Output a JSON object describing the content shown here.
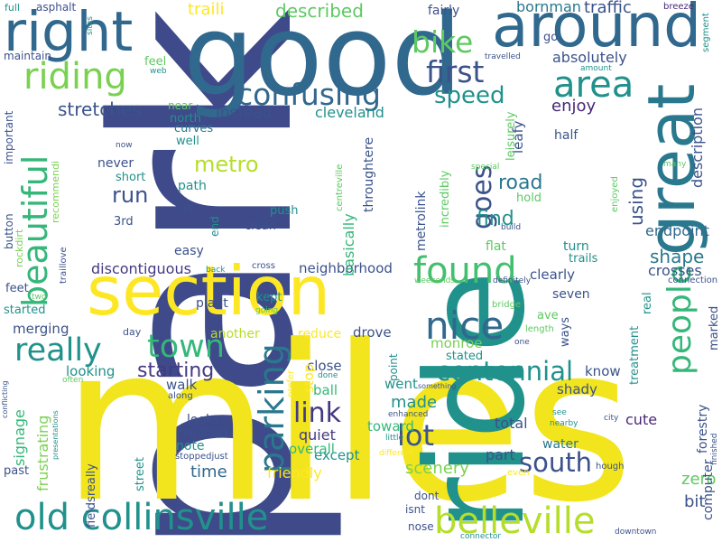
{
  "colors": {
    "background": "#ffffff",
    "palette": [
      "#440154",
      "#3b528b",
      "#21918c",
      "#5ec962",
      "#fde725"
    ]
  },
  "words": [
    {
      "text": "park",
      "color": "#3e4a89"
    },
    {
      "text": "miles",
      "color": "#f2e51d"
    },
    {
      "text": "ride",
      "color": "#21918c"
    },
    {
      "text": "good",
      "color": "#31688e"
    },
    {
      "text": "section",
      "color": "#fde725"
    },
    {
      "text": "around",
      "color": "#31688e"
    },
    {
      "text": "right",
      "color": "#31688e"
    },
    {
      "text": "great",
      "color": "#2a788e"
    },
    {
      "text": "old collinsville",
      "color": "#21918c"
    },
    {
      "text": "belleville",
      "color": "#b5de2b"
    },
    {
      "text": "parking",
      "color": "#2a788e"
    },
    {
      "text": "found",
      "color": "#44bf70"
    },
    {
      "text": "nice",
      "color": "#31688e"
    },
    {
      "text": "confusing",
      "color": "#31688e"
    },
    {
      "text": "area",
      "color": "#21918c"
    },
    {
      "text": "riding",
      "color": "#7ad151"
    },
    {
      "text": "beautiful",
      "color": "#35b779"
    },
    {
      "text": "bike",
      "color": "#5ec962"
    },
    {
      "text": "first",
      "color": "#3b528b"
    },
    {
      "text": "really",
      "color": "#21918c"
    },
    {
      "text": "town",
      "color": "#35b779"
    },
    {
      "text": "people",
      "color": "#35b779"
    },
    {
      "text": "link",
      "color": "#443983"
    },
    {
      "text": "lot",
      "color": "#3b528b"
    },
    {
      "text": "south",
      "color": "#3b528b"
    },
    {
      "text": "centennial",
      "color": "#21918c"
    },
    {
      "text": "goes",
      "color": "#3b528b"
    },
    {
      "text": "speed",
      "color": "#21918c"
    },
    {
      "text": "metro",
      "color": "#b5de2b"
    },
    {
      "text": "run",
      "color": "#3b528b"
    },
    {
      "text": "starting",
      "color": "#443983"
    },
    {
      "text": "shape",
      "color": "#2a788e"
    },
    {
      "text": "using",
      "color": "#3b528b"
    },
    {
      "text": "road",
      "color": "#2a788e"
    },
    {
      "text": "find",
      "color": "#21918c"
    },
    {
      "text": "stretches",
      "color": "#3b528b"
    },
    {
      "text": "instead",
      "color": "#3b528b"
    },
    {
      "text": "cleveland",
      "color": "#21918c"
    },
    {
      "text": "described",
      "color": "#5ec962"
    },
    {
      "text": "traili",
      "color": "#fde725"
    },
    {
      "text": "traffic",
      "color": "#3b528b"
    },
    {
      "text": "bornman",
      "color": "#2a788e"
    },
    {
      "text": "enjoy",
      "color": "#482878"
    },
    {
      "text": "absolutely",
      "color": "#3b528b"
    },
    {
      "text": "description",
      "color": "#3b528b"
    },
    {
      "text": "endpoint",
      "color": "#31688e"
    },
    {
      "text": "crosses",
      "color": "#3b528b"
    },
    {
      "text": "discontiguous",
      "color": "#443983"
    },
    {
      "text": "neighborhood",
      "color": "#3b528b"
    },
    {
      "text": "made",
      "color": "#21918c"
    },
    {
      "text": "signage",
      "color": "#35b779"
    },
    {
      "text": "frustrating",
      "color": "#7ad151"
    },
    {
      "text": "time",
      "color": "#31688e"
    },
    {
      "text": "zero",
      "color": "#5ec962"
    },
    {
      "text": "bit",
      "color": "#3b528b"
    },
    {
      "text": "scenery",
      "color": "#7ad151"
    },
    {
      "text": "quiet",
      "color": "#443983"
    },
    {
      "text": "except",
      "color": "#21918c"
    },
    {
      "text": "overall",
      "color": "#35b779"
    },
    {
      "text": "friendly",
      "color": "#fde725"
    },
    {
      "text": "part",
      "color": "#3b528b"
    },
    {
      "text": "total",
      "color": "#3b528b"
    },
    {
      "text": "water",
      "color": "#2a788e"
    },
    {
      "text": "cute",
      "color": "#482878"
    },
    {
      "text": "know",
      "color": "#3b528b"
    },
    {
      "text": "shady",
      "color": "#3b528b"
    },
    {
      "text": "went",
      "color": "#21918c"
    },
    {
      "text": "toward",
      "color": "#35b779"
    },
    {
      "text": "close",
      "color": "#3b528b"
    },
    {
      "text": "ball",
      "color": "#35b779"
    },
    {
      "text": "stop",
      "color": "#fde725"
    },
    {
      "text": "looks",
      "color": "#3b528b"
    },
    {
      "text": "crushed",
      "color": "#3b528b"
    },
    {
      "text": "note",
      "color": "#21918c"
    },
    {
      "text": "walk",
      "color": "#3b528b"
    },
    {
      "text": "looking",
      "color": "#21918c"
    },
    {
      "text": "merging",
      "color": "#3b528b"
    },
    {
      "text": "monroe",
      "color": "#7ad151"
    },
    {
      "text": "stated",
      "color": "#21918c"
    },
    {
      "text": "drove",
      "color": "#3b528b"
    },
    {
      "text": "reduce",
      "color": "#fde725"
    },
    {
      "text": "another",
      "color": "#b5de2b"
    },
    {
      "text": "plant",
      "color": "#3b528b"
    },
    {
      "text": "kept",
      "color": "#21918c"
    },
    {
      "text": "seven",
      "color": "#3b528b"
    },
    {
      "text": "clearly",
      "color": "#3b528b"
    },
    {
      "text": "turn",
      "color": "#21918c"
    },
    {
      "text": "trails",
      "color": "#21918c"
    },
    {
      "text": "flat",
      "color": "#5ec962"
    },
    {
      "text": "clean",
      "color": "#3b528b"
    },
    {
      "text": "push",
      "color": "#21918c"
    },
    {
      "text": "ill",
      "color": "#3b528b"
    },
    {
      "text": "easy",
      "color": "#3b528b"
    },
    {
      "text": "path",
      "color": "#21918c"
    },
    {
      "text": "short",
      "color": "#21918c"
    },
    {
      "text": "never",
      "color": "#3b528b"
    },
    {
      "text": "3rd",
      "color": "#3b528b"
    },
    {
      "text": "well",
      "color": "#21918c"
    },
    {
      "text": "curves",
      "color": "#2a788e"
    },
    {
      "text": "north",
      "color": "#21918c"
    },
    {
      "text": "near",
      "color": "#5ec962"
    },
    {
      "text": "feel",
      "color": "#5ec962"
    },
    {
      "text": "half",
      "color": "#3b528b"
    },
    {
      "text": "leafy",
      "color": "#3b528b"
    },
    {
      "text": "leisurely",
      "color": "#5ec962"
    },
    {
      "text": "fairly",
      "color": "#3b528b"
    },
    {
      "text": "go",
      "color": "#3b528b"
    },
    {
      "text": "travelled",
      "color": "#3b528b"
    },
    {
      "text": "amount",
      "color": "#21918c"
    },
    {
      "text": "breeze",
      "color": "#482878"
    },
    {
      "text": "segment",
      "color": "#21918c"
    },
    {
      "text": "sites",
      "color": "#21918c"
    },
    {
      "text": "full",
      "color": "#21918c"
    },
    {
      "text": "asphalt",
      "color": "#3b528b"
    },
    {
      "text": "maintain",
      "color": "#3b528b"
    },
    {
      "text": "important",
      "color": "#3b528b"
    },
    {
      "text": "button",
      "color": "#3b528b"
    },
    {
      "text": "rockdirt",
      "color": "#7ad151"
    },
    {
      "text": "recommendi",
      "color": "#7ad151"
    },
    {
      "text": "traillove",
      "color": "#3b528b"
    },
    {
      "text": "feet",
      "color": "#3b528b"
    },
    {
      "text": "started",
      "color": "#21918c"
    },
    {
      "text": "two",
      "color": "#5ec962"
    },
    {
      "text": "conflicting",
      "color": "#3b528b"
    },
    {
      "text": "presentations",
      "color": "#21918c"
    },
    {
      "text": "often",
      "color": "#5ec962"
    },
    {
      "text": "past",
      "color": "#3b528b"
    },
    {
      "text": "fieldsreally",
      "color": "#3b528b"
    },
    {
      "text": "street",
      "color": "#21918c"
    },
    {
      "text": "stoppedjust",
      "color": "#3b528b"
    },
    {
      "text": "along",
      "color": "#3b528b"
    },
    {
      "text": "day",
      "color": "#3b528b"
    },
    {
      "text": "now",
      "color": "#3b528b"
    },
    {
      "text": "end",
      "color": "#21918c"
    },
    {
      "text": "back",
      "color": "#21918c"
    },
    {
      "text": "cross",
      "color": "#3b528b"
    },
    {
      "text": "going",
      "color": "#5ec962"
    },
    {
      "text": "web",
      "color": "#21918c"
    },
    {
      "text": "prefer",
      "color": "#fde725"
    },
    {
      "text": "done",
      "color": "#21918c"
    },
    {
      "text": "something",
      "color": "#3b528b"
    },
    {
      "text": "enhanced",
      "color": "#3b528b"
    },
    {
      "text": "little",
      "color": "#21918c"
    },
    {
      "text": "different",
      "color": "#fde725"
    },
    {
      "text": "even",
      "color": "#fde725"
    },
    {
      "text": "dont",
      "color": "#3b528b"
    },
    {
      "text": "isnt",
      "color": "#3b528b"
    },
    {
      "text": "nose",
      "color": "#3b528b"
    },
    {
      "text": "connector",
      "color": "#21918c"
    },
    {
      "text": "downtown",
      "color": "#3b528b"
    },
    {
      "text": "hough",
      "color": "#3b528b"
    },
    {
      "text": "see",
      "color": "#21918c"
    },
    {
      "text": "nearby",
      "color": "#21918c"
    },
    {
      "text": "city",
      "color": "#3b528b"
    },
    {
      "text": "finished",
      "color": "#3b528b"
    },
    {
      "text": "forestry",
      "color": "#3b528b"
    },
    {
      "text": "computer",
      "color": "#3b528b"
    },
    {
      "text": "treatment",
      "color": "#21918c"
    },
    {
      "text": "real",
      "color": "#21918c"
    },
    {
      "text": "ways",
      "color": "#3b528b"
    },
    {
      "text": "ave",
      "color": "#5ec962"
    },
    {
      "text": "length",
      "color": "#5ec962"
    },
    {
      "text": "one",
      "color": "#3b528b"
    },
    {
      "text": "bridge",
      "color": "#5ec962"
    },
    {
      "text": "definitely",
      "color": "#3b528b"
    },
    {
      "text": "weekends",
      "color": "#5ec962"
    },
    {
      "text": "connection",
      "color": "#3b528b"
    },
    {
      "text": "marked",
      "color": "#3b528b"
    },
    {
      "text": "enjoyed",
      "color": "#5ec962"
    },
    {
      "text": "special",
      "color": "#5ec962"
    },
    {
      "text": "many",
      "color": "#5ec962"
    },
    {
      "text": "build",
      "color": "#3b528b"
    },
    {
      "text": "hold",
      "color": "#5ec962"
    },
    {
      "text": "incredibly",
      "color": "#5ec962"
    },
    {
      "text": "basically",
      "color": "#35b779"
    },
    {
      "text": "metrolink",
      "color": "#3b528b"
    },
    {
      "text": "throughtere",
      "color": "#3b528b"
    },
    {
      "text": "centreville",
      "color": "#5ec962"
    },
    {
      "text": "point",
      "color": "#21918c"
    }
  ]
}
